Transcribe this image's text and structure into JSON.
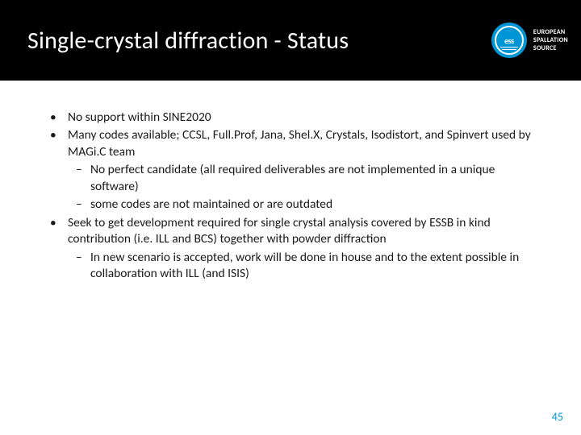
{
  "colors": {
    "accent": "#0096d6",
    "header_bg": "#000000",
    "text": "#1a1a1a",
    "white": "#ffffff"
  },
  "header": {
    "title": "Single-crystal diffraction - Status",
    "logo_abbrev": "ess",
    "brand_line1": "EUROPEAN",
    "brand_line2": "SPALLATION",
    "brand_line3": "SOURCE"
  },
  "bullets": {
    "b1": "No support within SINE2020",
    "b2": "Many codes available; CCSL, Full.Prof, Jana, Shel.X, Crystals, Isodistort, and Spinvert used by MAGi.C team",
    "b2_sub1": "No perfect candidate (all required deliverables are not implemented in a unique software)",
    "b2_sub2": "some  codes are not maintained or are outdated",
    "b3": "Seek to get development required for single crystal analysis covered by ESSB in kind contribution (i.e. ILL and BCS) together with powder diffraction",
    "b3_sub1": "In new scenario is accepted, work will be done in house and to the extent possible in collaboration with ILL (and ISIS)"
  },
  "page_number": "45"
}
